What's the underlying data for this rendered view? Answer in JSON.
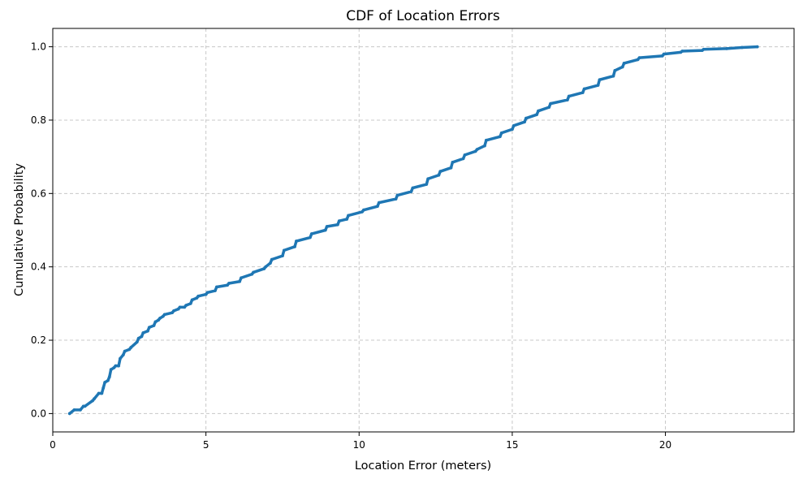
{
  "chart_data": {
    "type": "line",
    "title": "CDF of Location Errors",
    "xlabel": "Location Error (meters)",
    "ylabel": "Cumulative Probability",
    "xlim": [
      0,
      24.2
    ],
    "ylim": [
      -0.05,
      1.05
    ],
    "x_ticks": [
      0,
      5,
      10,
      15,
      20
    ],
    "y_ticks": [
      0.0,
      0.2,
      0.4,
      0.6,
      0.8,
      1.0
    ],
    "x_tick_labels": [
      "0",
      "5",
      "10",
      "15",
      "20"
    ],
    "y_tick_labels": [
      "0.0",
      "0.2",
      "0.4",
      "0.6",
      "0.8",
      "1.0"
    ],
    "grid": true,
    "grid_style": "dashed",
    "line_color": "#1f77b4",
    "grid_color": "#c8c8c8",
    "series": [
      {
        "x": [
          0.55,
          0.7,
          0.9,
          1.0,
          1.05,
          1.3,
          1.35,
          1.5,
          1.6,
          1.65,
          1.7,
          1.8,
          1.85,
          1.9,
          2.0,
          2.05,
          2.15,
          2.2,
          2.3,
          2.35,
          2.5,
          2.55,
          2.75,
          2.8,
          2.9,
          2.95,
          3.1,
          3.15,
          3.3,
          3.35,
          3.45,
          3.5,
          3.6,
          3.65,
          3.9,
          3.95,
          4.1,
          4.15,
          4.3,
          4.35,
          4.5,
          4.55,
          4.7,
          4.75,
          5.0,
          5.05,
          5.3,
          5.35,
          5.7,
          5.75,
          6.1,
          6.15,
          6.5,
          6.55,
          6.9,
          6.95,
          7.1,
          7.15,
          7.5,
          7.55,
          7.9,
          7.95,
          8.4,
          8.45,
          8.9,
          8.95,
          9.3,
          9.35,
          9.6,
          9.65,
          10.1,
          10.15,
          10.6,
          10.65,
          11.2,
          11.25,
          11.7,
          11.75,
          12.2,
          12.25,
          12.6,
          12.65,
          13.0,
          13.05,
          13.4,
          13.45,
          13.8,
          13.85,
          14.1,
          14.15,
          14.6,
          14.65,
          15.0,
          15.05,
          15.4,
          15.45,
          15.8,
          15.85,
          16.2,
          16.25,
          16.8,
          16.85,
          17.3,
          17.35,
          17.8,
          17.85,
          18.3,
          18.35,
          18.6,
          18.65,
          19.1,
          19.15,
          19.9,
          19.95,
          20.5,
          20.55,
          21.2,
          21.25,
          22.0,
          22.5,
          23.0
        ],
        "y": [
          0.0,
          0.01,
          0.01,
          0.02,
          0.02,
          0.035,
          0.04,
          0.055,
          0.055,
          0.07,
          0.085,
          0.09,
          0.1,
          0.12,
          0.125,
          0.13,
          0.13,
          0.15,
          0.16,
          0.17,
          0.175,
          0.18,
          0.195,
          0.205,
          0.21,
          0.22,
          0.225,
          0.235,
          0.24,
          0.25,
          0.255,
          0.26,
          0.265,
          0.27,
          0.275,
          0.28,
          0.285,
          0.29,
          0.29,
          0.295,
          0.3,
          0.31,
          0.315,
          0.32,
          0.325,
          0.33,
          0.335,
          0.345,
          0.35,
          0.355,
          0.36,
          0.37,
          0.38,
          0.385,
          0.395,
          0.4,
          0.41,
          0.42,
          0.43,
          0.445,
          0.455,
          0.47,
          0.48,
          0.49,
          0.5,
          0.51,
          0.515,
          0.525,
          0.53,
          0.54,
          0.55,
          0.555,
          0.565,
          0.575,
          0.585,
          0.595,
          0.605,
          0.615,
          0.625,
          0.64,
          0.65,
          0.66,
          0.67,
          0.685,
          0.695,
          0.705,
          0.715,
          0.72,
          0.73,
          0.745,
          0.755,
          0.765,
          0.775,
          0.785,
          0.795,
          0.805,
          0.815,
          0.825,
          0.835,
          0.845,
          0.855,
          0.865,
          0.875,
          0.885,
          0.895,
          0.91,
          0.92,
          0.935,
          0.945,
          0.955,
          0.965,
          0.97,
          0.975,
          0.98,
          0.985,
          0.988,
          0.99,
          0.993,
          0.995,
          0.998,
          1.0
        ]
      }
    ]
  }
}
